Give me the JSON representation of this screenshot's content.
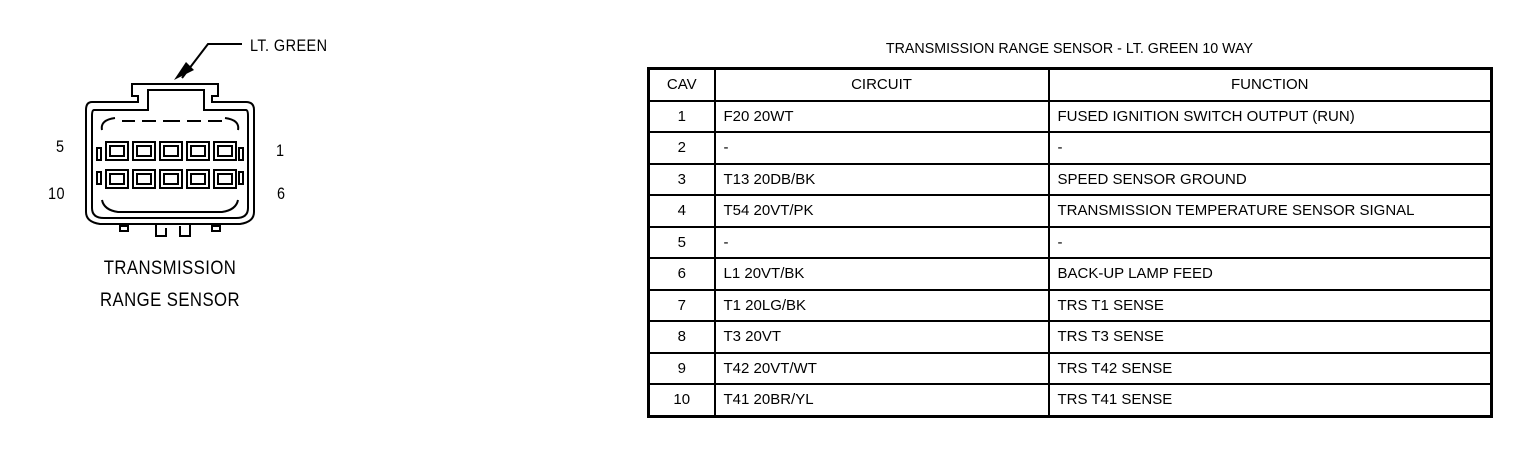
{
  "connector": {
    "color_label": "LT. GREEN",
    "pin_labels": {
      "top_left": "5",
      "top_right": "1",
      "bottom_left": "10",
      "bottom_right": "6"
    },
    "caption_line1": "TRANSMISSION",
    "caption_line2": "RANGE SENSOR"
  },
  "table": {
    "title": "TRANSMISSION RANGE SENSOR - LT. GREEN 10 WAY",
    "headers": {
      "cav": "CAV",
      "circuit": "CIRCUIT",
      "function": "FUNCTION"
    },
    "rows": [
      {
        "cav": "1",
        "circuit": "F20 20WT",
        "function": "FUSED IGNITION SWITCH OUTPUT (RUN)"
      },
      {
        "cav": "2",
        "circuit": "-",
        "function": "-"
      },
      {
        "cav": "3",
        "circuit": "T13 20DB/BK",
        "function": "SPEED SENSOR GROUND"
      },
      {
        "cav": "4",
        "circuit": "T54 20VT/PK",
        "function": "TRANSMISSION TEMPERATURE SENSOR SIGNAL"
      },
      {
        "cav": "5",
        "circuit": "-",
        "function": "-"
      },
      {
        "cav": "6",
        "circuit": "L1 20VT/BK",
        "function": "BACK-UP LAMP FEED"
      },
      {
        "cav": "7",
        "circuit": "T1 20LG/BK",
        "function": "TRS T1 SENSE"
      },
      {
        "cav": "8",
        "circuit": "T3 20VT",
        "function": "TRS T3 SENSE"
      },
      {
        "cav": "9",
        "circuit": "T42 20VT/WT",
        "function": "TRS T42 SENSE"
      },
      {
        "cav": "10",
        "circuit": "T41 20BR/YL",
        "function": "TRS T41 SENSE"
      }
    ]
  }
}
